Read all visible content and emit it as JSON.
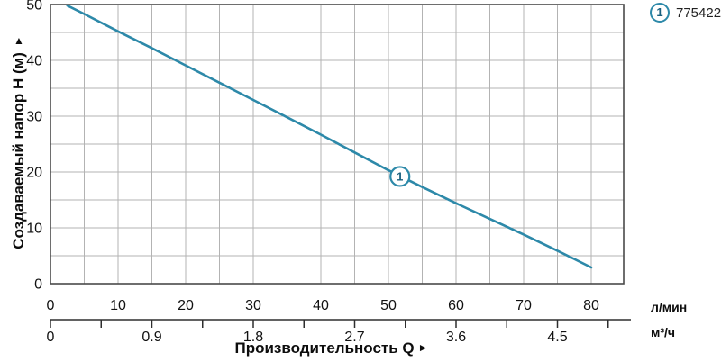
{
  "legend": {
    "marker": "1",
    "code": "775422"
  },
  "y_axis": {
    "title": "Создаваемый напор H (м)",
    "arrow": "▲",
    "ticks": [
      0,
      10,
      20,
      30,
      40,
      50
    ]
  },
  "x_axis_lmin": {
    "unit": "л/мин",
    "ticks": [
      0,
      10,
      20,
      30,
      40,
      50,
      60,
      70,
      80
    ]
  },
  "x_axis_m3h": {
    "unit": "м³/ч",
    "tick_labels": [
      "0",
      "0.9",
      "1.8",
      "2.7",
      "3.6",
      "4.5"
    ],
    "minor_step": 0.45,
    "minor_max": 4.95
  },
  "x_title": {
    "text": "Производительность Q",
    "arrow": "►"
  },
  "colors": {
    "curve": "#2d89a9",
    "marker_text": "#1a607f",
    "grid": "#b3b3b3",
    "border": "#4a4a4a",
    "axis2": "#2e2e2e",
    "text": "#111111"
  },
  "chart_data": {
    "type": "line",
    "title": "",
    "xlabel": "Производительность Q",
    "ylabel": "Создаваемый напор H (м)",
    "x_units": [
      "л/мин",
      "м³/ч"
    ],
    "y_unit": "м",
    "xlim": [
      0,
      84.8
    ],
    "ylim": [
      0,
      50
    ],
    "grid_step_x": 5,
    "grid_step_y": 5,
    "lmin_per_m3h": 16.6667,
    "series": [
      {
        "name": "775422",
        "x_lmin": [
          2.5,
          5,
          10,
          15,
          20,
          25,
          30,
          35,
          40,
          45,
          50,
          55,
          60,
          65,
          70,
          75,
          80
        ],
        "y_m": [
          49.8,
          48.3,
          45.2,
          42.2,
          39.1,
          36.0,
          32.9,
          29.8,
          26.7,
          23.5,
          20.3,
          17.3,
          14.4,
          11.6,
          8.8,
          5.9,
          2.9
        ],
        "marker": {
          "x": 51.7,
          "y": 19.2,
          "label": "1"
        }
      }
    ]
  }
}
